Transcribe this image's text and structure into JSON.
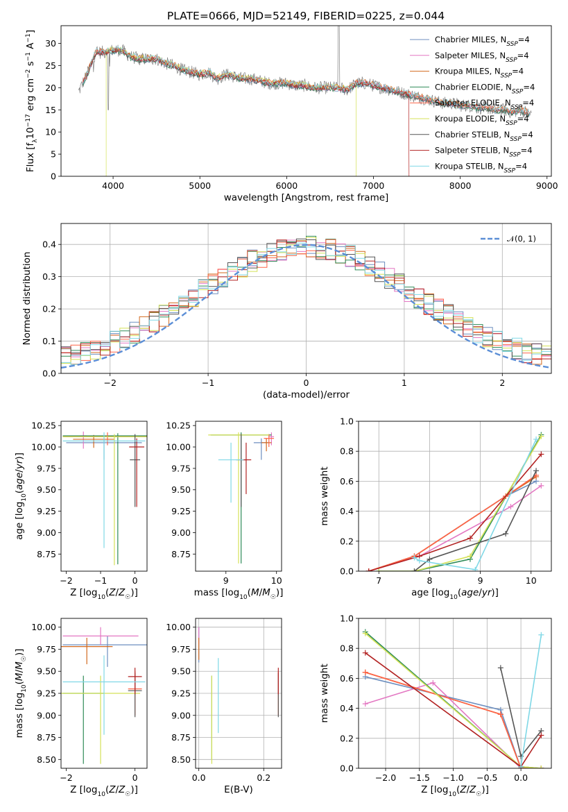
{
  "figure": {
    "title": "PLATE=0666, MJD=52149, FIBERID=0225, z=0.044",
    "model_names": [
      "Chabrier MILES",
      "Salpeter MILES",
      "Kroupa MILES",
      "Chabrier ELODIE",
      "Salpeter ELODIE",
      "Kroupa ELODIE",
      "Chabrier STELIB",
      "Salpeter STELIB",
      "Kroupa STELIB"
    ],
    "model_colors": [
      "#6c8ebf",
      "#e377c2",
      "#d2691e",
      "#2e8b57",
      "#ff6347",
      "#d4e157",
      "#555555",
      "#b22222",
      "#7fd8e6"
    ]
  },
  "chart_data": [
    {
      "id": "spectrum",
      "type": "line",
      "title": "PLATE=0666, MJD=52149, FIBERID=0225, z=0.044",
      "xlabel": "wavelength [Angstrom, rest frame]",
      "ylabel": "Flux [f_λ 10^-17 erg cm^-2 s^-1 A^-1]",
      "xlim": [
        3400,
        9050
      ],
      "ylim": [
        0,
        34
      ],
      "xticks": [
        4000,
        5000,
        6000,
        7000,
        8000,
        9000
      ],
      "yticks": [
        0,
        5,
        10,
        15,
        20,
        25,
        30
      ],
      "legend": [
        "Chabrier MILES, N_SSP=4",
        "Salpeter MILES, N_SSP=4",
        "Kroupa MILES, N_SSP=4",
        "Chabrier ELODIE, N_SSP=4",
        "Salpeter ELODIE, N_SSP=4",
        "Kroupa ELODIE, N_SSP=4",
        "Chabrier STELIB, N_SSP=4",
        "Salpeter STELIB, N_SSP=4",
        "Kroupa STELIB, N_SSP=4"
      ],
      "legend_position": "top-right",
      "continuum": [
        [
          3600,
          19
        ],
        [
          3700,
          23
        ],
        [
          3800,
          28
        ],
        [
          3900,
          28
        ],
        [
          4000,
          28.5
        ],
        [
          4100,
          28.5
        ],
        [
          4200,
          27
        ],
        [
          4300,
          26.5
        ],
        [
          4400,
          26.5
        ],
        [
          4500,
          26.5
        ],
        [
          4600,
          25.5
        ],
        [
          4700,
          25
        ],
        [
          4800,
          24
        ],
        [
          4900,
          23.5
        ],
        [
          5000,
          23
        ],
        [
          5100,
          23.5
        ],
        [
          5200,
          22
        ],
        [
          5300,
          23
        ],
        [
          5400,
          22.5
        ],
        [
          5500,
          22
        ],
        [
          5600,
          22
        ],
        [
          5700,
          21.5
        ],
        [
          5800,
          21
        ],
        [
          5900,
          21
        ],
        [
          6000,
          21
        ],
        [
          6100,
          20.5
        ],
        [
          6200,
          20.5
        ],
        [
          6300,
          20
        ],
        [
          6400,
          20
        ],
        [
          6500,
          20
        ],
        [
          6600,
          20
        ],
        [
          6700,
          19.5
        ],
        [
          6800,
          21
        ],
        [
          6900,
          21
        ],
        [
          7000,
          20.5
        ],
        [
          7100,
          20
        ],
        [
          7200,
          19.5
        ],
        [
          7300,
          19
        ],
        [
          7400,
          18.5
        ],
        [
          7500,
          18
        ],
        [
          7600,
          17.5
        ],
        [
          7700,
          17
        ],
        [
          7800,
          16.5
        ],
        [
          7900,
          16.5
        ],
        [
          8000,
          16
        ],
        [
          8100,
          16
        ],
        [
          8200,
          15.5
        ],
        [
          8300,
          15.5
        ],
        [
          8400,
          15
        ],
        [
          8500,
          15
        ],
        [
          8600,
          14.5
        ],
        [
          8700,
          15
        ],
        [
          8800,
          14
        ]
      ],
      "model_ranges": [
        [
          3650,
          8800
        ],
        [
          3650,
          8800
        ],
        [
          3650,
          8800
        ],
        [
          3650,
          8800
        ],
        [
          3650,
          8800
        ],
        [
          3920,
          6800
        ],
        [
          3650,
          8800
        ],
        [
          3650,
          7410
        ],
        [
          3650,
          8800
        ]
      ],
      "data_noise_amplitude": 1.5
    },
    {
      "id": "residuals",
      "type": "histogram",
      "xlabel": "(data-model)/error",
      "ylabel": "Normed distribution",
      "xlim": [
        -2.5,
        2.5
      ],
      "ylim": [
        0,
        0.465
      ],
      "xticks": [
        -2,
        -1,
        0,
        1,
        2
      ],
      "yticks": [
        0.0,
        0.1,
        0.2,
        0.3,
        0.4
      ],
      "grid": true,
      "bin_width": 0.1,
      "reference_curve": "N(0,1)",
      "legend": [
        "𝒩(0, 1)"
      ],
      "legend_position": "top-right",
      "bin_scatter": 0.035
    },
    {
      "id": "age-vs-Z",
      "type": "errorbar",
      "xlabel": "Z [log10(Z/Z☉)]",
      "ylabel": "age [log10(age/yr)]",
      "xlim": [
        -2.15,
        0.35
      ],
      "ylim": [
        8.55,
        10.3
      ],
      "xticks": [
        -2,
        -1,
        0
      ],
      "xtick_labels": [
        "−2",
        "−1",
        "0"
      ],
      "yticks": [
        8.75,
        9.0,
        9.25,
        9.5,
        9.75,
        10.0,
        10.25
      ],
      "points": [
        {
          "x": -0.9,
          "y": 10.05,
          "xerr": 1.1,
          "yerr_lo": 0.2,
          "yerr_hi": 0.05,
          "model": 0
        },
        {
          "x": -1.5,
          "y": 10.13,
          "xerr": 0.1,
          "yerr_lo": 0.15,
          "yerr_hi": 0.05,
          "model": 1
        },
        {
          "x": -1.2,
          "y": 10.09,
          "xerr": 0.6,
          "yerr_lo": 0.1,
          "yerr_hi": 0.05,
          "model": 2
        },
        {
          "x": -0.5,
          "y": 10.13,
          "xerr": 1.6,
          "yerr_lo": 1.5,
          "yerr_hi": 0.03,
          "model": 3
        },
        {
          "x": -0.8,
          "y": 10.12,
          "xerr": 1.3,
          "yerr_lo": 0.1,
          "yerr_hi": 0.05,
          "model": 4
        },
        {
          "x": -0.6,
          "y": 10.12,
          "xerr": 1.5,
          "yerr_lo": 1.5,
          "yerr_hi": 0.03,
          "model": 5
        },
        {
          "x": 0.0,
          "y": 9.85,
          "xerr": 0.15,
          "yerr_lo": 0.55,
          "yerr_hi": 0.3,
          "model": 6
        },
        {
          "x": 0.05,
          "y": 10.0,
          "xerr": 0.22,
          "yerr_lo": 0.7,
          "yerr_hi": 0.1,
          "model": 7
        },
        {
          "x": -0.9,
          "y": 10.07,
          "xerr": 1.2,
          "yerr_lo": 1.25,
          "yerr_hi": 0.1,
          "model": 8
        }
      ]
    },
    {
      "id": "age-vs-mass",
      "type": "errorbar",
      "xlabel": "mass [log10(M/M☉)]",
      "ylabel": "",
      "xlim": [
        8.4,
        10.1
      ],
      "ylim": [
        8.55,
        10.3
      ],
      "xticks": [
        9,
        10
      ],
      "yticks": [
        8.75,
        9.0,
        9.25,
        9.5,
        9.75,
        10.0,
        10.25
      ],
      "points": [
        {
          "x": 9.7,
          "y": 10.05,
          "xerr": 0.15,
          "yerr_lo": 0.2,
          "yerr_hi": 0.05,
          "model": 0
        },
        {
          "x": 9.9,
          "y": 10.12,
          "xerr": 0.05,
          "yerr_lo": 0.1,
          "yerr_hi": 0.05,
          "model": 1
        },
        {
          "x": 9.8,
          "y": 10.05,
          "xerr": 0.1,
          "yerr_lo": 0.1,
          "yerr_hi": 0.05,
          "model": 2
        },
        {
          "x": 9.3,
          "y": 10.14,
          "xerr": 0.6,
          "yerr_lo": 1.5,
          "yerr_hi": 0.03,
          "model": 3
        },
        {
          "x": 9.85,
          "y": 10.1,
          "xerr": 0.1,
          "yerr_lo": 0.1,
          "yerr_hi": 0.05,
          "model": 4
        },
        {
          "x": 9.25,
          "y": 10.14,
          "xerr": 0.6,
          "yerr_lo": 1.5,
          "yerr_hi": 0.03,
          "model": 5
        },
        {
          "x": 9.3,
          "y": 9.85,
          "xerr": 0.1,
          "yerr_lo": 0.55,
          "yerr_hi": 0.3,
          "model": 6
        },
        {
          "x": 9.4,
          "y": 9.85,
          "xerr": 0.1,
          "yerr_lo": 0.4,
          "yerr_hi": 0.2,
          "model": 7
        },
        {
          "x": 9.1,
          "y": 9.85,
          "xerr": 0.25,
          "yerr_lo": 0.5,
          "yerr_hi": 0.2,
          "model": 8
        }
      ]
    },
    {
      "id": "weight-vs-age",
      "type": "line",
      "xlabel": "age [log10(age/yr)]",
      "ylabel": "mass weight",
      "xlim": [
        6.6,
        10.4
      ],
      "ylim": [
        0,
        1.0
      ],
      "xticks": [
        7,
        8,
        9,
        10
      ],
      "yticks": [
        0.0,
        0.2,
        0.4,
        0.6,
        0.8,
        1.0
      ],
      "grid": true,
      "series": [
        {
          "x": [
            6.8,
            7.7,
            9.5,
            10.1
          ],
          "y": [
            0.0,
            0.1,
            0.5,
            0.6
          ]
        },
        {
          "x": [
            6.8,
            7.8,
            9.6,
            10.2
          ],
          "y": [
            0.0,
            0.1,
            0.43,
            0.57
          ]
        },
        {
          "x": [
            6.8,
            7.7,
            9.5,
            10.1
          ],
          "y": [
            0.0,
            0.1,
            0.5,
            0.63
          ]
        },
        {
          "x": [
            7.0,
            7.7,
            8.8,
            10.2
          ],
          "y": [
            0.0,
            0.0,
            0.08,
            0.91
          ]
        },
        {
          "x": [
            6.8,
            7.7,
            9.5,
            10.1
          ],
          "y": [
            0.0,
            0.1,
            0.5,
            0.64
          ]
        },
        {
          "x": [
            7.0,
            7.7,
            8.8,
            10.2
          ],
          "y": [
            0.0,
            0.0,
            0.1,
            0.9
          ]
        },
        {
          "x": [
            7.7,
            8.0,
            9.5,
            10.1
          ],
          "y": [
            0.0,
            0.08,
            0.25,
            0.67
          ]
        },
        {
          "x": [
            6.8,
            7.8,
            8.8,
            10.2
          ],
          "y": [
            0.0,
            0.1,
            0.22,
            0.78
          ]
        },
        {
          "x": [
            7.7,
            7.8,
            8.9,
            10.1
          ],
          "y": [
            0.09,
            0.07,
            0.01,
            0.88
          ]
        }
      ]
    },
    {
      "id": "mass-vs-Z",
      "type": "errorbar",
      "xlabel": "Z [log10(Z/Z☉)]",
      "ylabel": "mass [log10(M/M☉)]",
      "xlim": [
        -2.15,
        0.35
      ],
      "ylim": [
        8.4,
        10.1
      ],
      "xticks": [
        -2,
        0
      ],
      "xtick_labels": [
        "−2",
        "0"
      ],
      "yticks": [
        8.5,
        8.75,
        9.0,
        9.25,
        9.5,
        9.75,
        10.0
      ],
      "points": [
        {
          "x": -0.8,
          "y": 9.8,
          "xerr": 1.3,
          "yerr_lo": 0.25,
          "yerr_hi": 0.1,
          "model": 0
        },
        {
          "x": -1.0,
          "y": 9.9,
          "xerr": 1.1,
          "yerr_lo": 0.1,
          "yerr_hi": 0.1,
          "model": 1
        },
        {
          "x": -1.4,
          "y": 9.78,
          "xerr": 0.75,
          "yerr_lo": 0.2,
          "yerr_hi": 0.1,
          "model": 2
        },
        {
          "x": -1.5,
          "y": 9.25,
          "xerr": 0.6,
          "yerr_lo": 0.8,
          "yerr_hi": 0.2,
          "model": 3
        },
        {
          "x": 0.0,
          "y": 9.3,
          "xerr": 0.2,
          "yerr_lo": 0.3,
          "yerr_hi": 0.2,
          "model": 4
        },
        {
          "x": -1.0,
          "y": 9.25,
          "xerr": 1.15,
          "yerr_lo": 0.8,
          "yerr_hi": 0.2,
          "model": 5
        },
        {
          "x": 0.0,
          "y": 9.28,
          "xerr": 0.2,
          "yerr_lo": 0.3,
          "yerr_hi": 0.2,
          "model": 6
        },
        {
          "x": 0.0,
          "y": 9.44,
          "xerr": 0.2,
          "yerr_lo": 0.2,
          "yerr_hi": 0.1,
          "model": 7
        },
        {
          "x": -0.9,
          "y": 9.38,
          "xerr": 1.2,
          "yerr_lo": 0.6,
          "yerr_hi": 0.3,
          "model": 8
        }
      ]
    },
    {
      "id": "mass-vs-EBV",
      "type": "errorbar",
      "xlabel": "E(B-V)",
      "ylabel": "",
      "xlim": [
        -0.01,
        0.255
      ],
      "ylim": [
        8.4,
        10.1
      ],
      "xticks": [
        0.0,
        0.2
      ],
      "yticks": [
        8.5,
        8.75,
        9.0,
        9.25,
        9.5,
        9.75,
        10.0
      ],
      "grid": true,
      "points": [
        {
          "x": 0.0,
          "y": 9.8,
          "yerr_lo": 0.2,
          "yerr_hi": 0.2,
          "model": 0
        },
        {
          "x": 0.0,
          "y": 9.9,
          "yerr_lo": 0.1,
          "yerr_hi": 0.1,
          "model": 1
        },
        {
          "x": 0.0,
          "y": 9.78,
          "yerr_lo": 0.15,
          "yerr_hi": 0.1,
          "model": 2
        },
        {
          "x": 0.04,
          "y": 9.0,
          "yerr_lo": 0.5,
          "yerr_hi": 0.45,
          "model": 3
        },
        {
          "x": 0.245,
          "y": 9.3,
          "yerr_lo": 0.3,
          "yerr_hi": 0.2,
          "model": 4
        },
        {
          "x": 0.04,
          "y": 9.0,
          "yerr_lo": 0.55,
          "yerr_hi": 0.45,
          "model": 5
        },
        {
          "x": 0.245,
          "y": 9.28,
          "yerr_lo": 0.3,
          "yerr_hi": 0.2,
          "model": 6
        },
        {
          "x": 0.245,
          "y": 9.44,
          "yerr_lo": 0.2,
          "yerr_hi": 0.1,
          "model": 7
        },
        {
          "x": 0.06,
          "y": 9.2,
          "yerr_lo": 0.4,
          "yerr_hi": 0.45,
          "model": 8
        }
      ]
    },
    {
      "id": "weight-vs-Z",
      "type": "line",
      "xlabel": "Z [log10(Z/Z☉)]",
      "ylabel": "mass weight",
      "xlim": [
        -2.4,
        0.45
      ],
      "ylim": [
        0,
        1.0
      ],
      "xticks": [
        -2.0,
        -1.5,
        -1.0,
        -0.5,
        0.0
      ],
      "xtick_labels": [
        "−2.0",
        "−1.5",
        "−1.0",
        "−0.5",
        "0.0"
      ],
      "yticks": [
        0.0,
        0.2,
        0.4,
        0.6,
        0.8,
        1.0
      ],
      "grid": true,
      "series": [
        {
          "x": [
            -2.3,
            -0.3,
            0.0,
            0.3
          ],
          "y": [
            0.61,
            0.39,
            0.0,
            0.0
          ]
        },
        {
          "x": [
            -2.3,
            -1.3,
            0.0,
            0.3
          ],
          "y": [
            0.43,
            0.57,
            0.0,
            0.0
          ]
        },
        {
          "x": [
            -2.3,
            -0.3,
            0.0,
            0.3
          ],
          "y": [
            0.64,
            0.36,
            0.0,
            0.0
          ]
        },
        {
          "x": [
            -2.3,
            0.0,
            0.3
          ],
          "y": [
            0.91,
            0.01,
            0.0
          ]
        },
        {
          "x": [
            -2.3,
            -0.3,
            0.0,
            0.3
          ],
          "y": [
            0.64,
            0.36,
            0.0,
            0.0
          ]
        },
        {
          "x": [
            -2.3,
            0.0,
            0.3
          ],
          "y": [
            0.9,
            0.01,
            0.0
          ]
        },
        {
          "x": [
            -0.3,
            0.0,
            0.3
          ],
          "y": [
            0.67,
            0.08,
            0.25
          ]
        },
        {
          "x": [
            -2.3,
            0.0,
            0.3
          ],
          "y": [
            0.77,
            0.01,
            0.22
          ]
        },
        {
          "x": [
            0.0,
            0.3
          ],
          "y": [
            0.01,
            0.89
          ]
        }
      ]
    }
  ]
}
